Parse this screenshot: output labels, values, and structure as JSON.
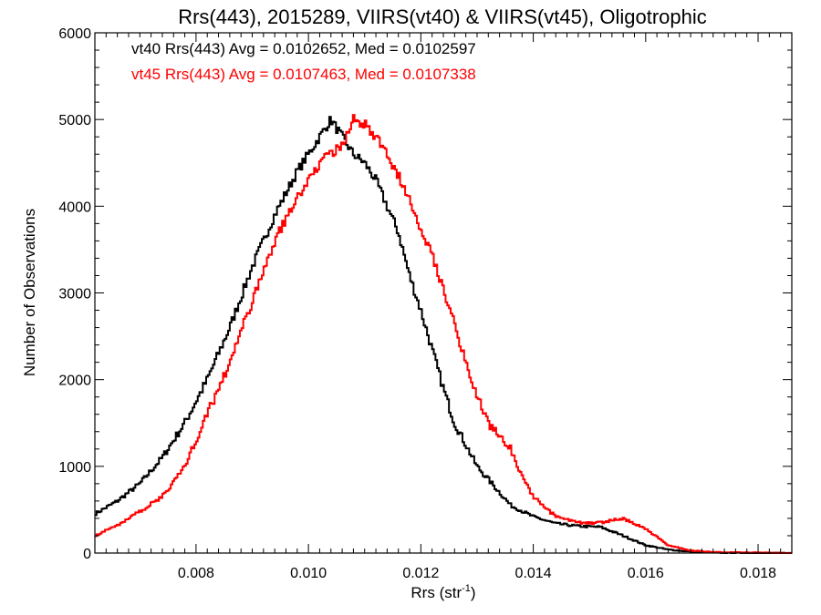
{
  "chart_data": {
    "type": "line",
    "title": "Rrs(443), 2015289, VIIRS(vt40) & VIIRS(vt45), Oligotrophic",
    "xlabel": "Rrs (str",
    "xlabel_sup": "-1",
    "xlabel_close": ")",
    "ylabel": "Number of Observations",
    "xlim": [
      0.0062,
      0.0186
    ],
    "ylim": [
      0,
      6000
    ],
    "x_ticks": [
      0.008,
      0.01,
      0.012,
      0.014,
      0.016,
      0.018
    ],
    "x_tick_labels": [
      "0.008",
      "0.010",
      "0.012",
      "0.014",
      "0.016",
      "0.018"
    ],
    "y_ticks": [
      0,
      1000,
      2000,
      3000,
      4000,
      5000,
      6000
    ],
    "y_tick_labels": [
      "0",
      "1000",
      "2000",
      "3000",
      "4000",
      "5000",
      "6000"
    ],
    "grid": false,
    "legend_position": "top-left",
    "legend": [
      {
        "text": "vt40 Rrs(443) Avg = 0.0102652, Med = 0.0102597",
        "color": "#000000"
      },
      {
        "text": "vt45 Rrs(443) Avg = 0.0107463, Med = 0.0107338",
        "color": "#ff0000"
      }
    ],
    "series": [
      {
        "color": "#000000",
        "x": [
          0.0062,
          0.0066,
          0.007,
          0.0074,
          0.0078,
          0.0082,
          0.0086,
          0.009,
          0.0094,
          0.0098,
          0.0102,
          0.0104,
          0.0106,
          0.0108,
          0.011,
          0.0112,
          0.0114,
          0.0116,
          0.0118,
          0.012,
          0.0122,
          0.0124,
          0.0126,
          0.0128,
          0.013,
          0.0132,
          0.0134,
          0.0136,
          0.014,
          0.0144,
          0.0148,
          0.0152,
          0.0156,
          0.016,
          0.0164,
          0.0168,
          0.0172,
          0.018,
          0.0186
        ],
        "y": [
          450,
          600,
          800,
          1100,
          1500,
          2000,
          2600,
          3300,
          3900,
          4400,
          4800,
          5000,
          4800,
          4600,
          4500,
          4300,
          4000,
          3700,
          3200,
          2800,
          2350,
          1900,
          1500,
          1250,
          1000,
          850,
          700,
          550,
          420,
          340,
          310,
          300,
          200,
          90,
          40,
          15,
          5,
          0,
          0
        ]
      },
      {
        "color": "#ff0000",
        "x": [
          0.0062,
          0.0066,
          0.007,
          0.0074,
          0.0078,
          0.0082,
          0.0086,
          0.009,
          0.0094,
          0.0098,
          0.0102,
          0.0106,
          0.0108,
          0.011,
          0.0112,
          0.0114,
          0.0116,
          0.0118,
          0.012,
          0.0122,
          0.0124,
          0.0126,
          0.0128,
          0.013,
          0.0132,
          0.0134,
          0.0136,
          0.0138,
          0.014,
          0.0144,
          0.0148,
          0.0152,
          0.0156,
          0.016,
          0.0164,
          0.0168,
          0.0172,
          0.018,
          0.0186
        ],
        "y": [
          200,
          320,
          480,
          650,
          1000,
          1600,
          2200,
          2900,
          3600,
          4100,
          4500,
          4700,
          5000,
          4950,
          4800,
          4600,
          4350,
          4100,
          3750,
          3450,
          3050,
          2650,
          2200,
          1800,
          1500,
          1350,
          1200,
          900,
          650,
          420,
          350,
          350,
          400,
          280,
          90,
          30,
          10,
          5,
          0
        ]
      }
    ]
  }
}
